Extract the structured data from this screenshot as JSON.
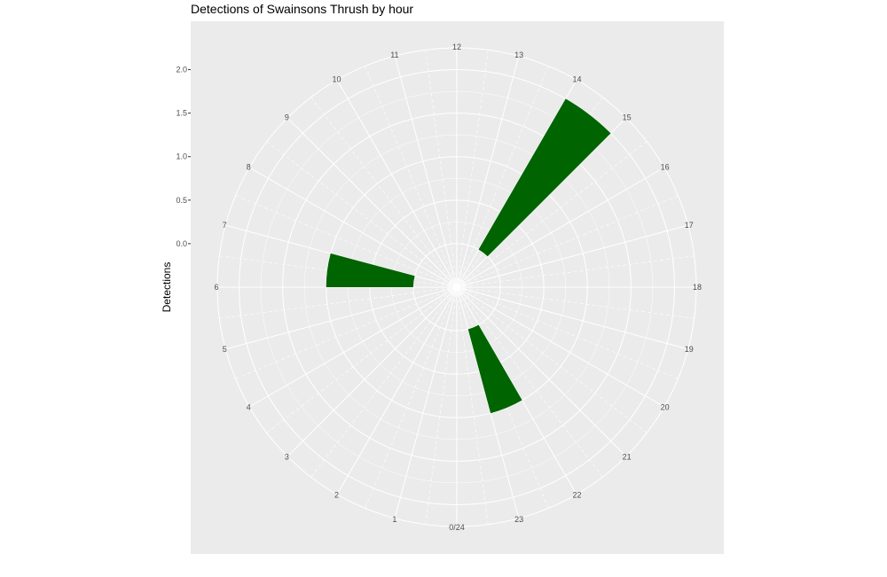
{
  "chart_data": {
    "type": "bar",
    "coord": "polar",
    "title": "Detections of Swainsons Thrush by hour",
    "ylabel": "Detections",
    "xlabel": "",
    "hour_labels": [
      "0/24",
      "1",
      "2",
      "3",
      "4",
      "5",
      "6",
      "7",
      "8",
      "9",
      "10",
      "11",
      "12",
      "13",
      "14",
      "15",
      "16",
      "17",
      "18",
      "19",
      "20",
      "21",
      "22",
      "23"
    ],
    "y_ticks": [
      "0.0",
      "0.5",
      "1.0",
      "1.5",
      "2.0"
    ],
    "ylim": [
      -0.5,
      2.25
    ],
    "categories": [
      6,
      14,
      22
    ],
    "values": [
      1.0,
      2.0,
      1.0
    ],
    "bar_color": "#006400",
    "panel_color": "#ebebeb",
    "grid_color": "#ffffff",
    "grid": true
  }
}
